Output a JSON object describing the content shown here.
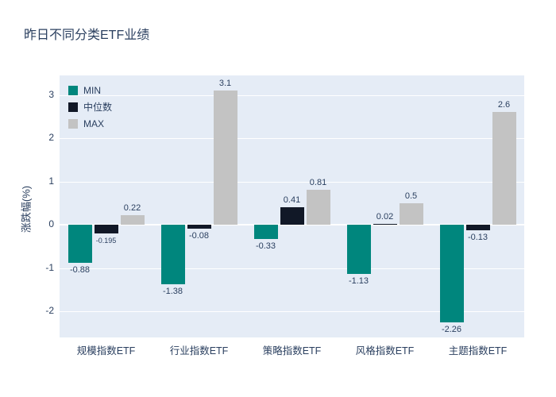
{
  "chart_data": {
    "type": "bar",
    "title": "昨日不同分类ETF业绩",
    "xlabel": "",
    "ylabel": "涨跌幅(%)",
    "categories": [
      "规模指数ETF",
      "行业指数ETF",
      "策略指数ETF",
      "风格指数ETF",
      "主题指数ETF"
    ],
    "series": [
      {
        "name": "MIN",
        "color": "#00867d",
        "values": [
          -0.88,
          -1.38,
          -0.33,
          -1.13,
          -2.26
        ],
        "labels": [
          "-0.88",
          "-1.38",
          "-0.33",
          "-1.13",
          "-2.26"
        ]
      },
      {
        "name": "中位数",
        "color": "#111827",
        "values": [
          -0.195,
          -0.08,
          0.41,
          0.02,
          -0.13
        ],
        "labels": [
          "-0.195",
          "-0.08",
          "0.41",
          "0.02",
          "-0.13"
        ]
      },
      {
        "name": "MAX",
        "color": "#c3c3c3",
        "values": [
          0.22,
          3.1,
          0.81,
          0.5,
          2.6
        ],
        "labels": [
          "0.22",
          "3.1",
          "0.81",
          "0.5",
          "2.6"
        ]
      }
    ],
    "yticks": [
      -2,
      -1,
      0,
      1,
      2,
      3
    ],
    "ytick_labels": [
      "-2",
      "-1",
      "0",
      "1",
      "2",
      "3"
    ],
    "ylim": [
      -2.6,
      3.45
    ],
    "grid": true,
    "legend_position": "top-left",
    "plot_bg": "#e5ecf6",
    "text_color": "#2a3f5f"
  }
}
